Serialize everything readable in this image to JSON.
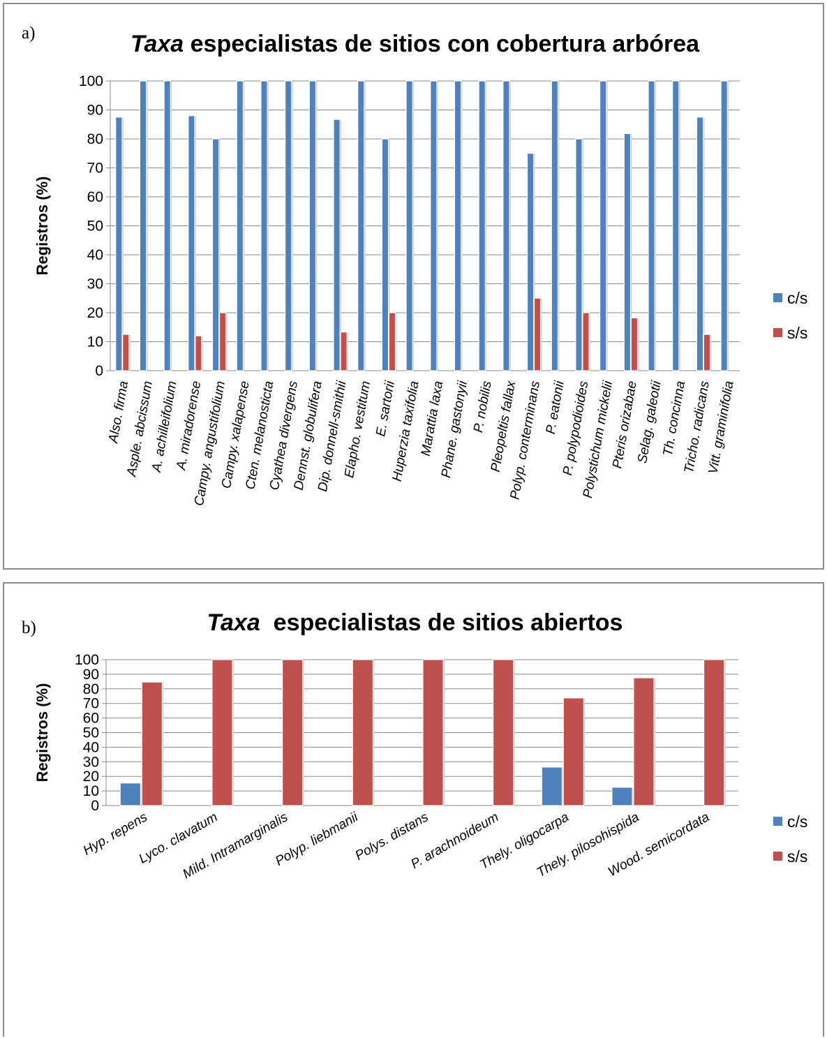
{
  "chart_data": [
    {
      "panel_label": "a)",
      "title_italic": "Taxa",
      "title_rest": " especialistas de sitios con cobertura arbórea",
      "type": "bar",
      "ylabel": "Registros (%)",
      "ylim": [
        0,
        100
      ],
      "yticks": [
        0,
        10,
        20,
        30,
        40,
        50,
        60,
        70,
        80,
        90,
        100
      ],
      "grid": true,
      "legend_position": "right",
      "categories": [
        "Also. firma",
        "Asple. abcissum",
        "A. achilleifolium",
        "A. miradorense",
        "Campy. angustifolium",
        "Campy. xalapense",
        "Cten. melanosticta",
        "Cyathea divergens",
        "Dennst. globulifera",
        "Dip. donnell-smithii",
        "Elapho. vestitum",
        "E. sartorii",
        "Huperzia taxifolia",
        "Marattia laxa",
        "Phane. gastonyii",
        "P. nobilis",
        "Pleopeltis fallax",
        "Polyp. conterminans",
        "P. eatonii",
        "P. polypodioides",
        "Polystichum mickelii",
        "Pteris orizabae",
        "Selag. galeotii",
        "Th. concinna",
        "Tricho. radicans",
        "Vitt. graminifolia"
      ],
      "series": [
        {
          "name": "c/s",
          "color": "#4f81bd",
          "values": [
            87.5,
            100,
            100,
            88,
            80,
            100,
            100,
            100,
            100,
            86.7,
            100,
            80,
            100,
            100,
            100,
            100,
            100,
            75,
            100,
            80,
            100,
            81.8,
            100,
            100,
            87.5,
            100
          ]
        },
        {
          "name": "s/s",
          "color": "#c0504d",
          "values": [
            12.5,
            0,
            0,
            12,
            20,
            0,
            0,
            0,
            0,
            13.3,
            0,
            20,
            0,
            0,
            0,
            0,
            0,
            25,
            0,
            20,
            0,
            18.2,
            0,
            0,
            12.5,
            0
          ]
        }
      ]
    },
    {
      "panel_label": "b)",
      "title_italic": "Taxa",
      "title_rest": "  especialistas de sitios abiertos",
      "type": "bar",
      "ylabel": "Registros (%)",
      "ylim": [
        0,
        100
      ],
      "yticks": [
        0,
        10,
        20,
        30,
        40,
        50,
        60,
        70,
        80,
        90,
        100
      ],
      "grid": true,
      "legend_position": "right",
      "categories": [
        "Hyp. repens",
        "Lyco. clavatum",
        "Mild. Intramarginalis",
        "Polyp. liebmanii",
        "Polys. distans",
        "P. arachnoideum",
        "Thely. oligocarpa",
        "Thely. pilosohispida",
        "Wood. semicordata"
      ],
      "series": [
        {
          "name": "c/s",
          "color": "#4f81bd",
          "values": [
            15.4,
            0,
            0,
            0,
            0,
            0,
            26.3,
            12.5,
            0
          ]
        },
        {
          "name": "s/s",
          "color": "#c0504d",
          "values": [
            84.6,
            100,
            100,
            100,
            100,
            100,
            73.7,
            87.5,
            100
          ]
        }
      ]
    }
  ]
}
